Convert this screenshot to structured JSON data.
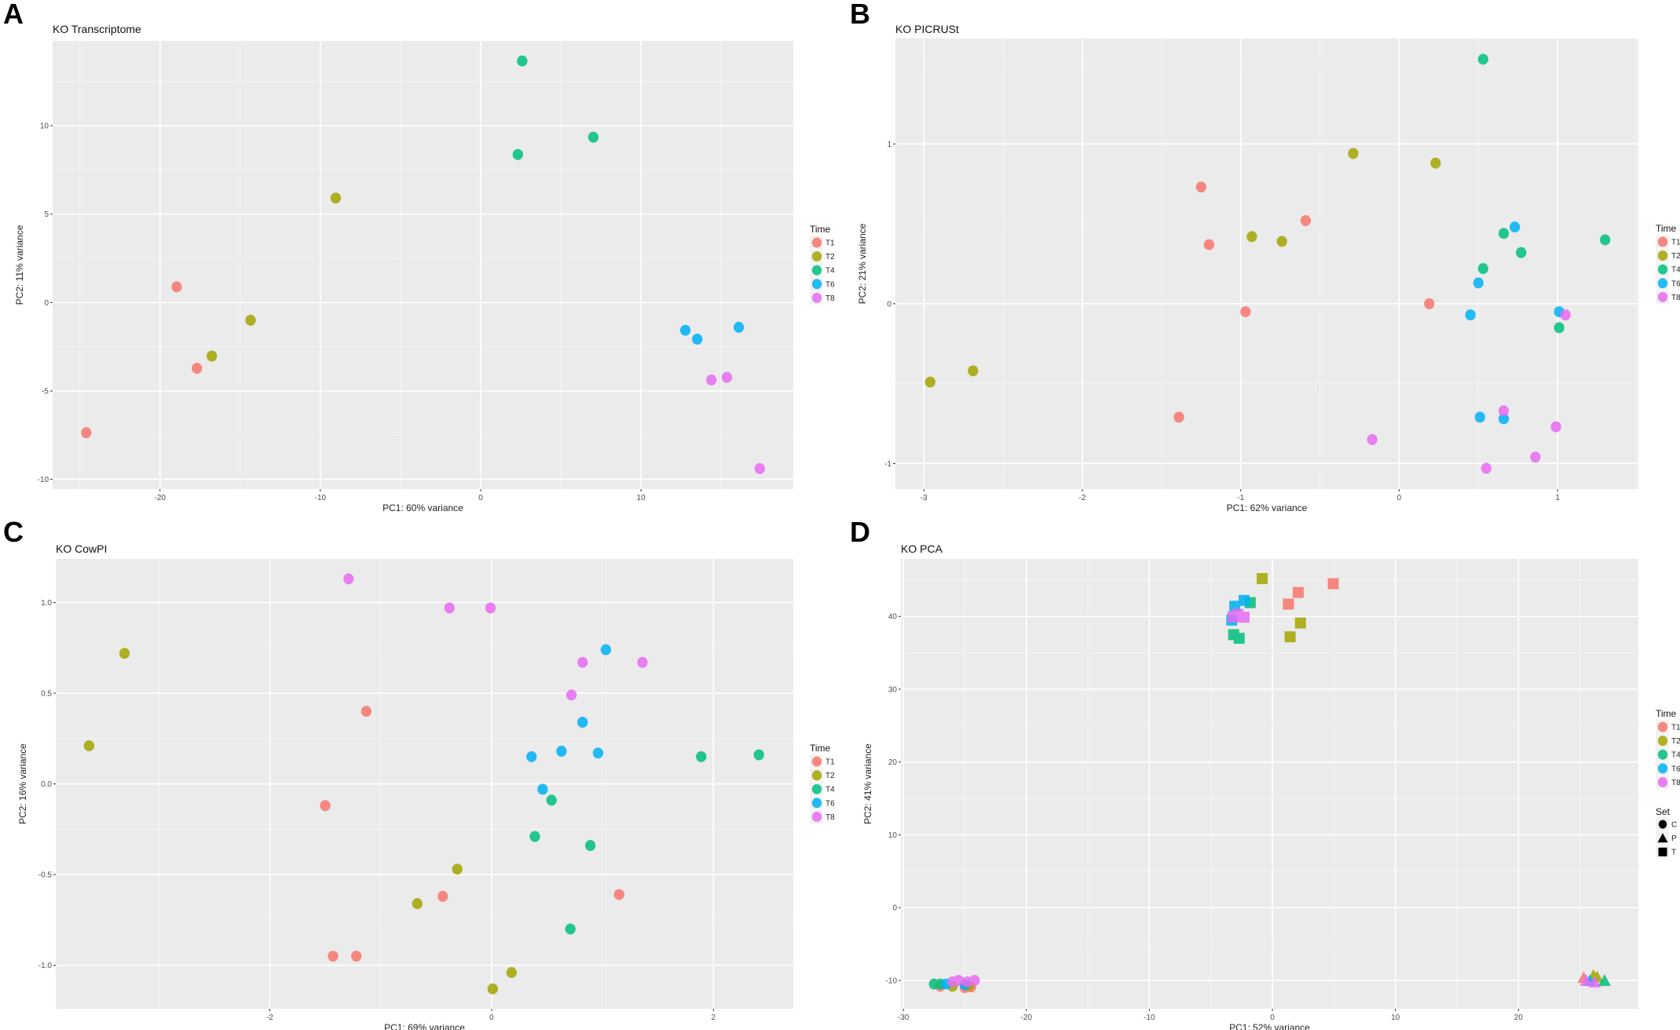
{
  "chart_data": [
    {
      "panel_label": "A",
      "type": "scatter",
      "title": "KO Transcriptome",
      "xlabel": "PC1: 60% variance",
      "ylabel": "PC2: 11% variance",
      "xlim": [
        -26.7,
        19.5
      ],
      "ylim": [
        -10.55,
        14.8
      ],
      "xticks": [
        {
          "v": -20,
          "label": "-20"
        },
        {
          "v": -10,
          "label": "-10"
        },
        {
          "v": 0,
          "label": "0"
        },
        {
          "v": 10,
          "label": "10"
        }
      ],
      "yticks": [
        {
          "v": -10,
          "label": "-10"
        },
        {
          "v": -5,
          "label": "-5"
        },
        {
          "v": 0,
          "label": "0"
        },
        {
          "v": 5,
          "label": "5"
        },
        {
          "v": 10,
          "label": "10"
        }
      ],
      "grid": true,
      "legend": {
        "title": "Time",
        "placement": "right"
      },
      "series": [
        {
          "name": "T1",
          "color": "#F8766D",
          "points": [
            [
              -18.96,
              0.89
            ],
            [
              -17.7,
              -3.72
            ],
            [
              -24.6,
              -7.36
            ]
          ]
        },
        {
          "name": "T2",
          "color": "#A3A500",
          "points": [
            [
              -9.04,
              5.91
            ],
            [
              -14.35,
              -1.0
            ],
            [
              -16.77,
              -3.03
            ]
          ]
        },
        {
          "name": "T4",
          "color": "#00BF7D",
          "points": [
            [
              2.59,
              13.66
            ],
            [
              7.03,
              9.35
            ],
            [
              2.32,
              8.37
            ]
          ]
        },
        {
          "name": "T6",
          "color": "#00B0F6",
          "points": [
            [
              12.77,
              -1.57
            ],
            [
              13.51,
              -2.07
            ],
            [
              16.1,
              -1.4
            ]
          ]
        },
        {
          "name": "T8",
          "color": "#E76BF3",
          "points": [
            [
              14.39,
              -4.38
            ],
            [
              15.36,
              -4.23
            ],
            [
              17.41,
              -9.39
            ]
          ]
        }
      ]
    },
    {
      "panel_label": "B",
      "type": "scatter",
      "title": "KO PICRUSt",
      "xlabel": "PC1: 62% variance",
      "ylabel": "PC2: 21% variance",
      "xlim": [
        -3.18,
        1.51
      ],
      "ylim": [
        -1.16,
        1.66
      ],
      "xticks": [
        {
          "v": -3,
          "label": "-3"
        },
        {
          "v": -2,
          "label": "-2"
        },
        {
          "v": -1,
          "label": "-1"
        },
        {
          "v": 0,
          "label": "0"
        },
        {
          "v": 1,
          "label": "1"
        }
      ],
      "yticks": [
        {
          "v": -1,
          "label": "-1"
        },
        {
          "v": 0,
          "label": "0"
        },
        {
          "v": 1,
          "label": "1"
        }
      ],
      "grid": true,
      "legend": {
        "title": "Time",
        "placement": "right"
      },
      "series": [
        {
          "name": "T1",
          "color": "#F8766D",
          "points": [
            [
              -1.25,
              0.73
            ],
            [
              -1.2,
              0.37
            ],
            [
              -0.59,
              0.52
            ],
            [
              -0.97,
              -0.05
            ],
            [
              0.19,
              0.0
            ],
            [
              -1.39,
              -0.71
            ]
          ]
        },
        {
          "name": "T2",
          "color": "#A3A500",
          "points": [
            [
              -0.29,
              0.94
            ],
            [
              0.23,
              0.88
            ],
            [
              -0.93,
              0.42
            ],
            [
              -0.74,
              0.39
            ],
            [
              -2.69,
              -0.42
            ],
            [
              -2.96,
              -0.49
            ]
          ]
        },
        {
          "name": "T4",
          "color": "#00BF7D",
          "points": [
            [
              0.53,
              1.53
            ],
            [
              0.66,
              0.44
            ],
            [
              1.3,
              0.4
            ],
            [
              0.77,
              0.32
            ],
            [
              0.53,
              0.22
            ],
            [
              1.01,
              -0.15
            ]
          ]
        },
        {
          "name": "T6",
          "color": "#00B0F6",
          "points": [
            [
              0.73,
              0.48
            ],
            [
              0.5,
              0.13
            ],
            [
              0.45,
              -0.07
            ],
            [
              1.01,
              -0.05
            ],
            [
              0.51,
              -0.71
            ],
            [
              0.66,
              -0.72
            ]
          ]
        },
        {
          "name": "T8",
          "color": "#E76BF3",
          "points": [
            [
              1.05,
              -0.07
            ],
            [
              0.66,
              -0.67
            ],
            [
              0.99,
              -0.77
            ],
            [
              -0.17,
              -0.85
            ],
            [
              0.86,
              -0.96
            ],
            [
              0.55,
              -1.03
            ]
          ]
        }
      ]
    },
    {
      "panel_label": "C",
      "type": "scatter",
      "title": "KO CowPI",
      "xlabel": "PC1: 69% variance",
      "ylabel": "PC2: 16% variance",
      "xlim": [
        -3.93,
        2.72
      ],
      "ylim": [
        -1.24,
        1.24
      ],
      "xticks": [
        {
          "v": -2,
          "label": "-2"
        },
        {
          "v": 0,
          "label": "0"
        },
        {
          "v": 2,
          "label": "2"
        }
      ],
      "yticks": [
        {
          "v": -1,
          "label": "-1.0"
        },
        {
          "v": -0.5,
          "label": "-0.5"
        },
        {
          "v": 0,
          "label": "0.0"
        },
        {
          "v": 0.5,
          "label": "0.5"
        },
        {
          "v": 1,
          "label": "1.0"
        }
      ],
      "grid": true,
      "legend": {
        "title": "Time",
        "placement": "right"
      },
      "series": [
        {
          "name": "T1",
          "color": "#F8766D",
          "points": [
            [
              -1.13,
              0.4
            ],
            [
              -1.5,
              -0.12
            ],
            [
              -0.44,
              -0.62
            ],
            [
              1.15,
              -0.61
            ],
            [
              -1.43,
              -0.95
            ],
            [
              -1.22,
              -0.95
            ]
          ]
        },
        {
          "name": "T2",
          "color": "#A3A500",
          "points": [
            [
              -3.31,
              0.72
            ],
            [
              -3.63,
              0.21
            ],
            [
              -0.31,
              -0.47
            ],
            [
              -0.67,
              -0.66
            ],
            [
              0.18,
              -1.04
            ],
            [
              0.01,
              -1.13
            ]
          ]
        },
        {
          "name": "T4",
          "color": "#00BF7D",
          "points": [
            [
              1.89,
              0.15
            ],
            [
              2.41,
              0.16
            ],
            [
              0.54,
              -0.09
            ],
            [
              0.39,
              -0.29
            ],
            [
              0.89,
              -0.34
            ],
            [
              0.71,
              -0.8
            ]
          ]
        },
        {
          "name": "T6",
          "color": "#00B0F6",
          "points": [
            [
              1.03,
              0.74
            ],
            [
              0.82,
              0.34
            ],
            [
              0.36,
              0.15
            ],
            [
              0.63,
              0.18
            ],
            [
              0.96,
              0.17
            ],
            [
              0.46,
              -0.03
            ]
          ]
        },
        {
          "name": "T8",
          "color": "#E76BF3",
          "points": [
            [
              -1.29,
              1.13
            ],
            [
              -0.38,
              0.97
            ],
            [
              -0.01,
              0.97
            ],
            [
              0.82,
              0.67
            ],
            [
              1.36,
              0.67
            ],
            [
              0.72,
              0.49
            ]
          ]
        }
      ]
    },
    {
      "panel_label": "D",
      "type": "scatter",
      "title": "KO PCA",
      "xlabel": "PC1: 52% variance",
      "ylabel": "PC2: 41% variance",
      "xlim": [
        -30.2,
        29.75
      ],
      "ylim": [
        -13.9,
        47.9
      ],
      "xticks": [
        {
          "v": -30,
          "label": "-30"
        },
        {
          "v": -20,
          "label": "-20"
        },
        {
          "v": -10,
          "label": "-10"
        },
        {
          "v": 0,
          "label": "0"
        },
        {
          "v": 10,
          "label": "10"
        },
        {
          "v": 20,
          "label": "20"
        }
      ],
      "yticks": [
        {
          "v": -10,
          "label": "-10"
        },
        {
          "v": 0,
          "label": "0"
        },
        {
          "v": 10,
          "label": "10"
        },
        {
          "v": 20,
          "label": "20"
        },
        {
          "v": 30,
          "label": "30"
        },
        {
          "v": 40,
          "label": "40"
        }
      ],
      "grid": true,
      "legend": {
        "title": "Time",
        "placement": "right"
      },
      "shape_legend": {
        "title": "Set",
        "entries": [
          {
            "name": "C",
            "shape": "circle"
          },
          {
            "name": "P",
            "shape": "triangle"
          },
          {
            "name": "T",
            "shape": "square"
          }
        ]
      },
      "series": [
        {
          "name": "T1",
          "color": "#F8766D",
          "points": [
            [
              2.1,
              43.3,
              "T"
            ],
            [
              4.95,
              44.5,
              "T"
            ],
            [
              1.3,
              41.7,
              "T"
            ],
            [
              -27.0,
              -10.8,
              "C"
            ],
            [
              -25.0,
              -11.0,
              "C"
            ],
            [
              -24.5,
              -10.9,
              "C"
            ],
            [
              25.3,
              -9.6,
              "P"
            ]
          ]
        },
        {
          "name": "T2",
          "color": "#A3A500",
          "points": [
            [
              -0.83,
              45.2,
              "T"
            ],
            [
              2.28,
              39.1,
              "T"
            ],
            [
              1.44,
              37.2,
              "T"
            ],
            [
              -26.0,
              -10.8,
              "C"
            ],
            [
              -24.7,
              -10.7,
              "C"
            ],
            [
              26.1,
              -9.3,
              "P"
            ],
            [
              26.4,
              -9.5,
              "P"
            ]
          ]
        },
        {
          "name": "T4",
          "color": "#00BF7D",
          "points": [
            [
              -1.8,
              41.9,
              "T"
            ],
            [
              -3.15,
              37.5,
              "T"
            ],
            [
              -2.7,
              37.0,
              "T"
            ],
            [
              -27.5,
              -10.5,
              "C"
            ],
            [
              -27.0,
              -10.5,
              "C"
            ],
            [
              27.0,
              -10.0,
              "P"
            ]
          ]
        },
        {
          "name": "T6",
          "color": "#00B0F6",
          "points": [
            [
              -2.3,
              42.2,
              "T"
            ],
            [
              -3.06,
              41.4,
              "T"
            ],
            [
              -3.3,
              39.5,
              "T"
            ],
            [
              -26.5,
              -10.5,
              "C"
            ],
            [
              -25.0,
              -10.6,
              "C"
            ],
            [
              25.8,
              -10.0,
              "P"
            ]
          ]
        },
        {
          "name": "T8",
          "color": "#E76BF3",
          "points": [
            [
              -2.8,
              40.3,
              "T"
            ],
            [
              -2.3,
              39.9,
              "T"
            ],
            [
              -3.2,
              39.96,
              "T"
            ],
            [
              -26.0,
              -10.2,
              "C"
            ],
            [
              -25.5,
              -10.0,
              "C"
            ],
            [
              -24.8,
              -10.2,
              "C"
            ],
            [
              -24.2,
              -10.0,
              "C"
            ],
            [
              25.5,
              -10.0,
              "P"
            ],
            [
              26.2,
              -10.2,
              "P"
            ]
          ]
        }
      ]
    }
  ]
}
